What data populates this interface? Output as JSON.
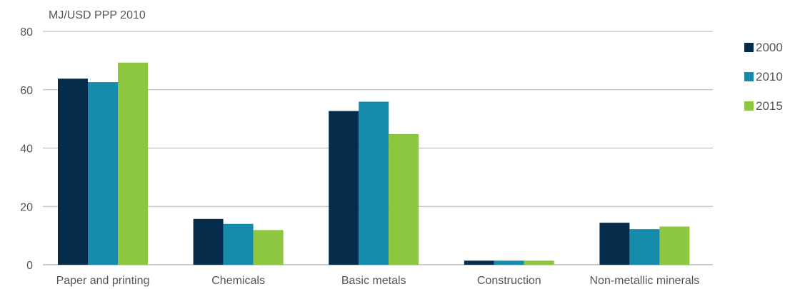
{
  "chart_data": {
    "type": "bar",
    "ylabel": "MJ/USD PPP 2010",
    "ylim": [
      0,
      80
    ],
    "yticks": [
      0,
      20,
      40,
      60,
      80
    ],
    "grid": true,
    "legend_position": "right",
    "categories": [
      "Paper and printing",
      "Chemicals",
      "Basic metals",
      "Construction",
      "Non-metallic minerals"
    ],
    "series": [
      {
        "name": "2000",
        "color": "#062c4c",
        "values": [
          63.8,
          15.7,
          52.7,
          1.4,
          14.4
        ]
      },
      {
        "name": "2010",
        "color": "#168aaa",
        "values": [
          62.6,
          14.0,
          55.9,
          1.4,
          12.2
        ]
      },
      {
        "name": "2015",
        "color": "#8dc63f",
        "values": [
          69.3,
          11.9,
          44.8,
          1.4,
          13.1
        ]
      }
    ]
  }
}
